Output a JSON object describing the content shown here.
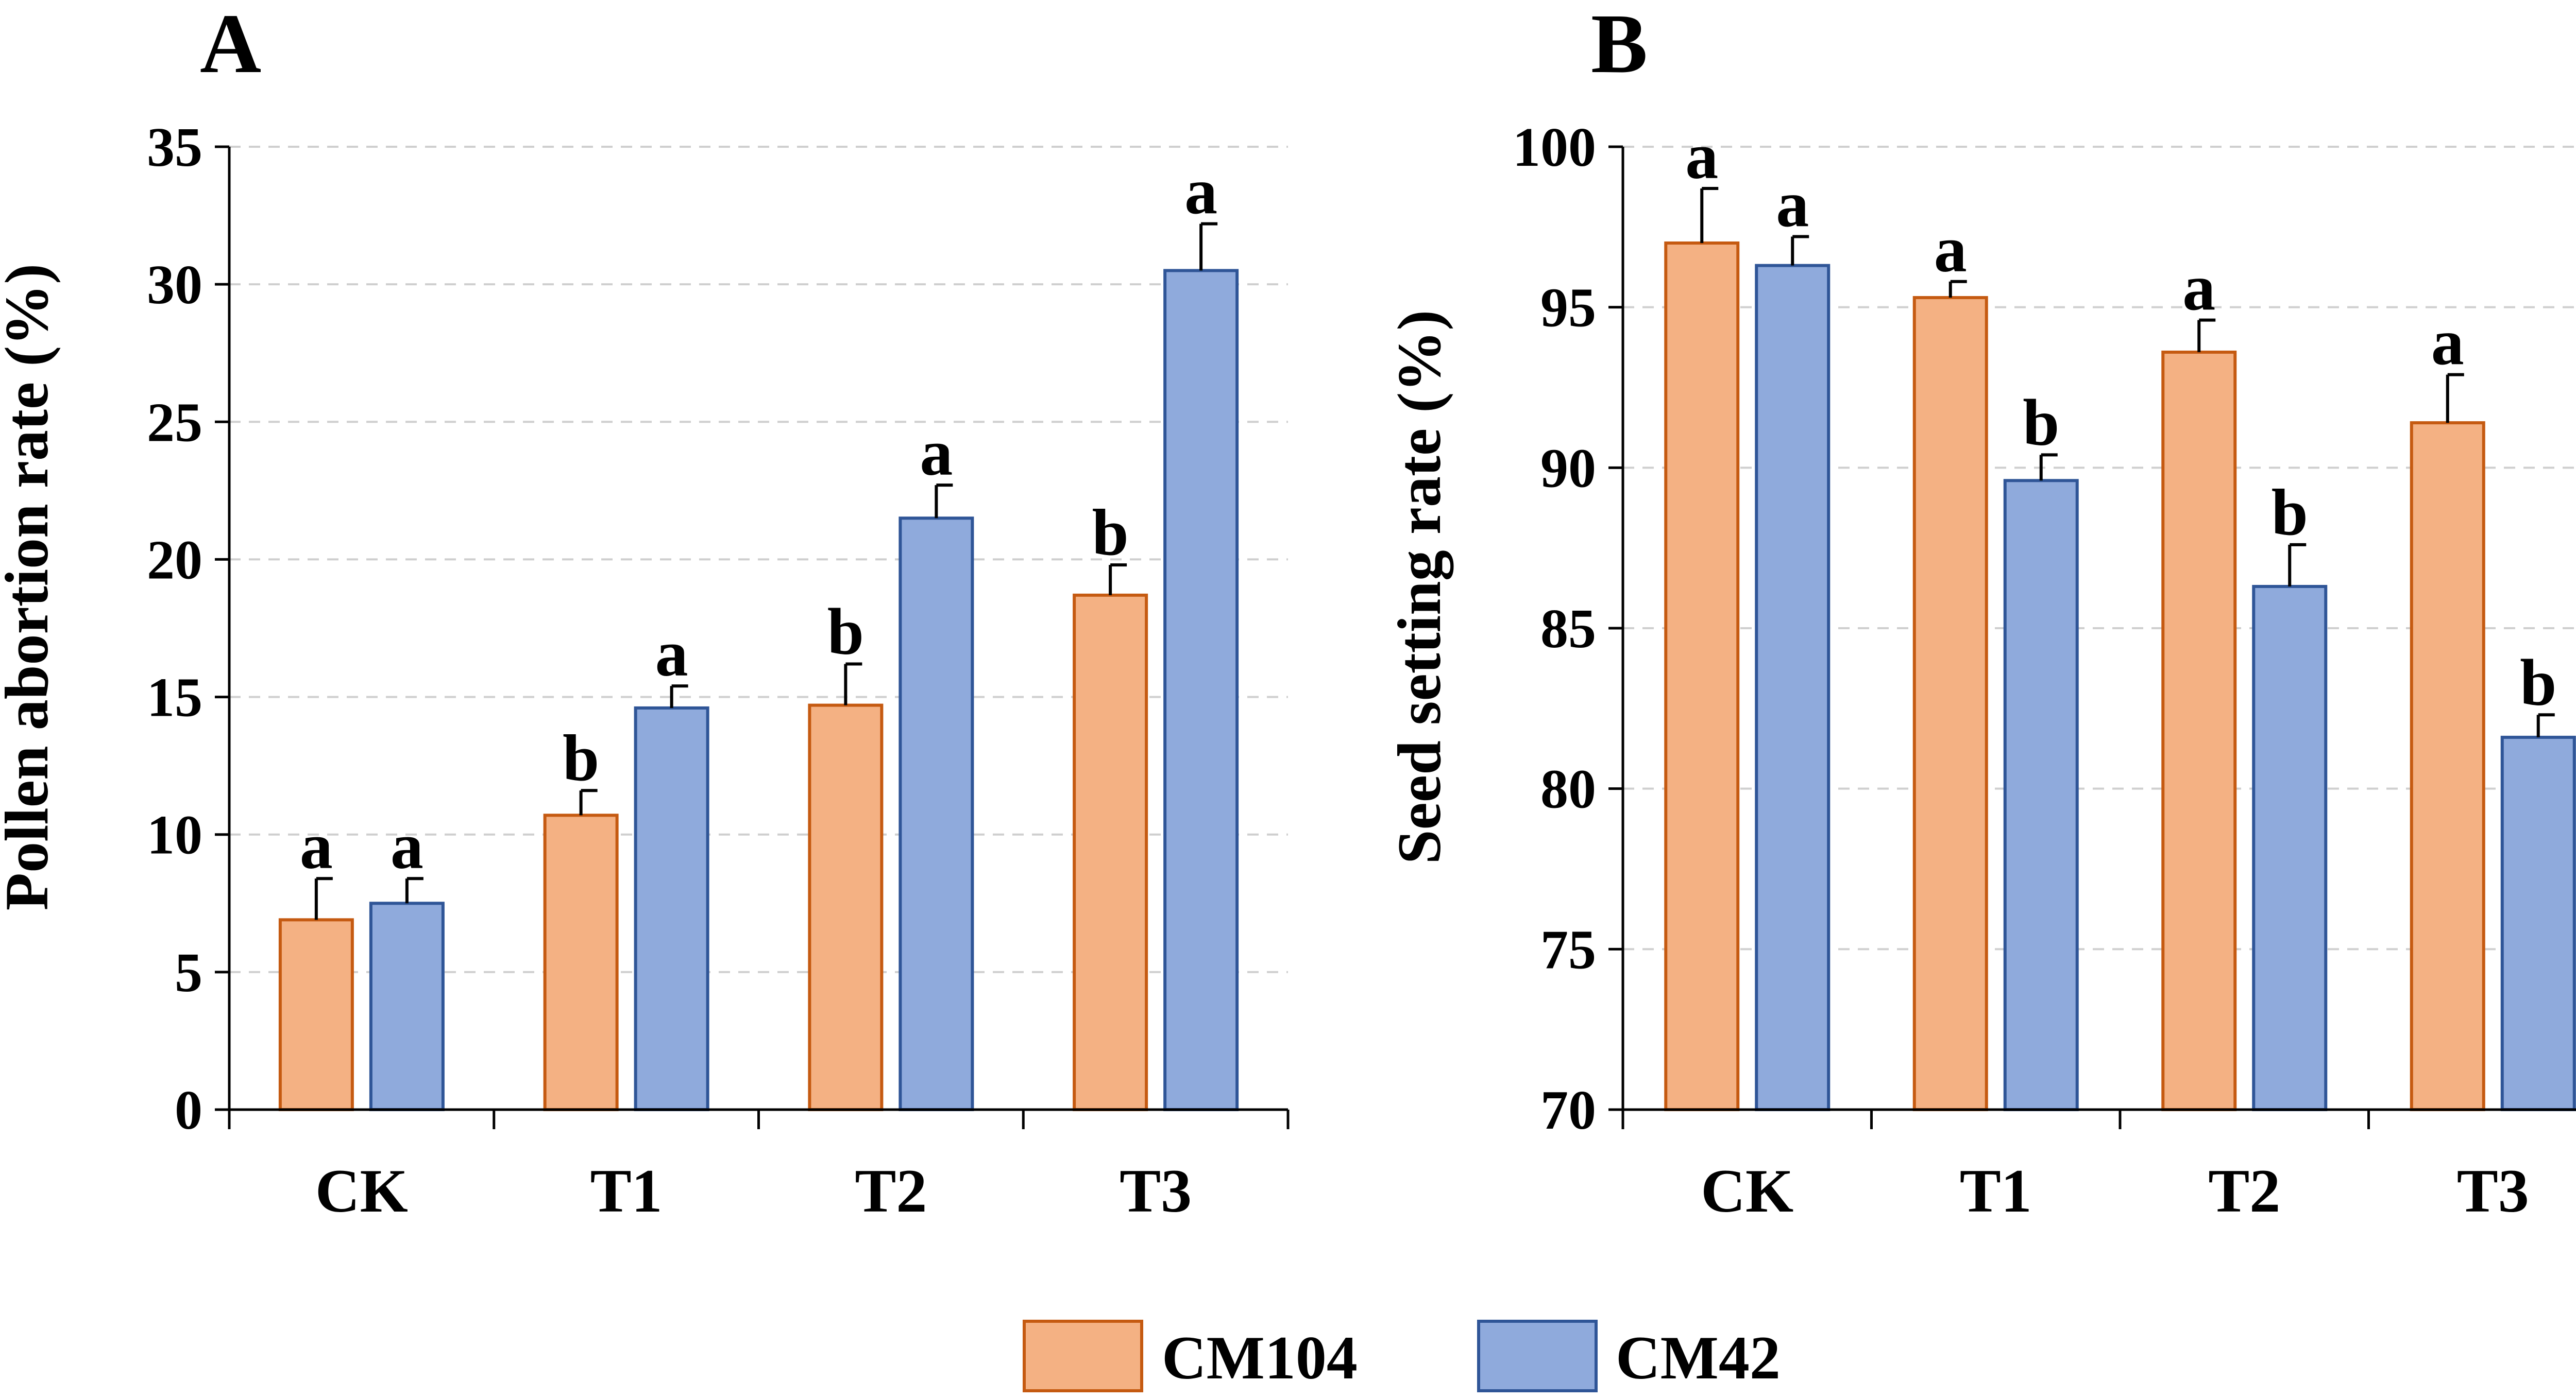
{
  "legend": [
    {
      "label": "CM104",
      "fill": "#F4B183",
      "stroke": "#C55A11"
    },
    {
      "label": "CM42",
      "fill": "#8FAADC",
      "stroke": "#2F5597"
    }
  ],
  "chart_data": [
    {
      "panel": "A",
      "type": "bar",
      "ylabel": "Pollen abortion rate (%)",
      "xlabel": "",
      "categories": [
        "CK",
        "T1",
        "T2",
        "T3"
      ],
      "ylim": [
        0,
        35
      ],
      "yticks": [
        0,
        5,
        10,
        15,
        20,
        25,
        30,
        35
      ],
      "grid": true,
      "series": [
        {
          "name": "CM104",
          "values": [
            6.9,
            10.7,
            14.7,
            18.7
          ],
          "errors": [
            1.5,
            0.9,
            1.5,
            1.1
          ],
          "labels": [
            "a",
            "b",
            "b",
            "b"
          ]
        },
        {
          "name": "CM42",
          "values": [
            7.5,
            14.6,
            21.5,
            30.5
          ],
          "errors": [
            0.9,
            0.8,
            1.2,
            1.7
          ],
          "labels": [
            "a",
            "a",
            "a",
            "a"
          ]
        }
      ]
    },
    {
      "panel": "B",
      "type": "bar",
      "ylabel": "Seed setting rate (%)",
      "xlabel": "",
      "categories": [
        "CK",
        "T1",
        "T2",
        "T3"
      ],
      "ylim": [
        70,
        100
      ],
      "yticks": [
        70,
        75,
        80,
        85,
        90,
        95,
        100
      ],
      "grid": true,
      "series": [
        {
          "name": "CM104",
          "values": [
            97.0,
            95.3,
            93.6,
            91.4
          ],
          "errors": [
            1.7,
            0.5,
            1.0,
            1.5
          ],
          "labels": [
            "a",
            "a",
            "a",
            "a"
          ]
        },
        {
          "name": "CM42",
          "values": [
            96.3,
            89.6,
            86.3,
            81.6
          ],
          "errors": [
            0.9,
            0.8,
            1.3,
            0.7
          ],
          "labels": [
            "a",
            "b",
            "b",
            "b"
          ]
        }
      ]
    }
  ]
}
